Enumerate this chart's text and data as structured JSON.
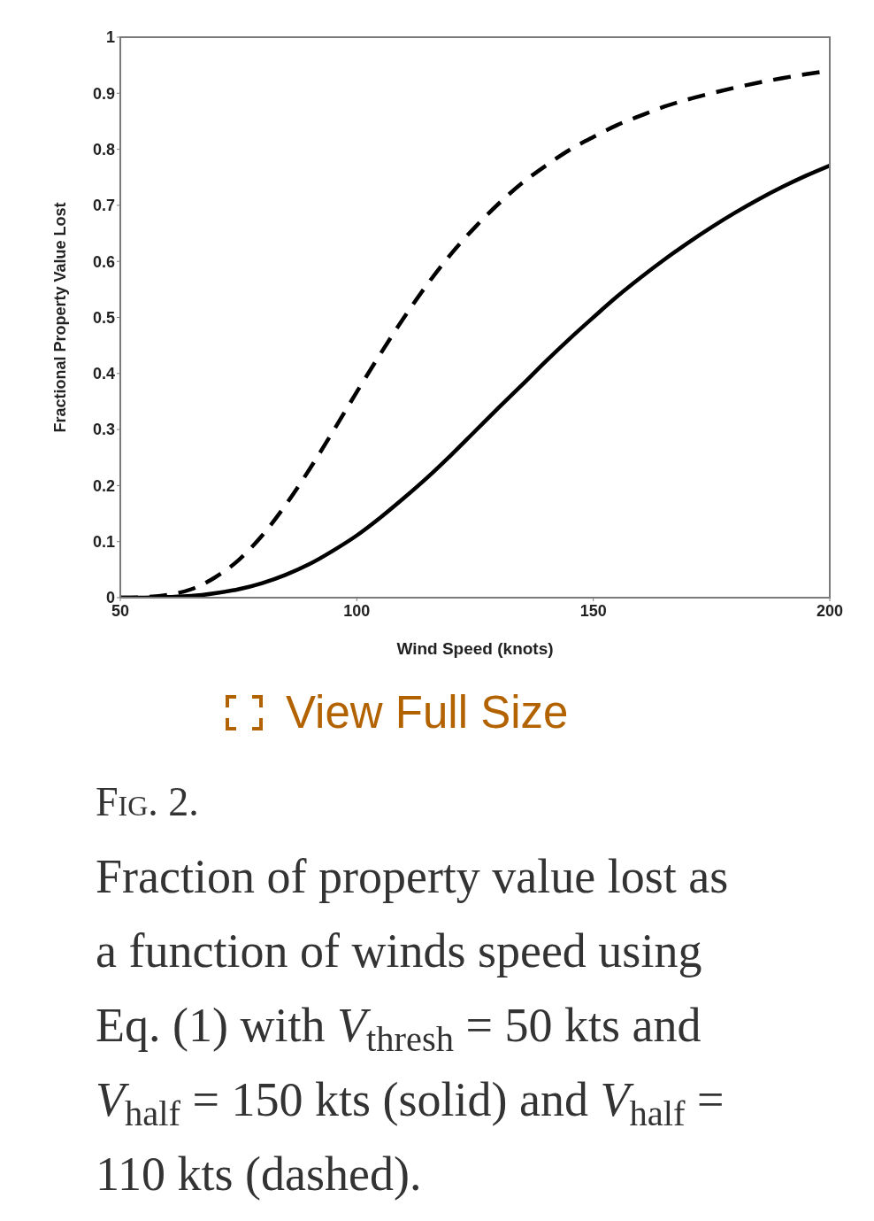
{
  "chart_data": {
    "type": "line",
    "title": "Fig. 2.",
    "xlabel": "Wind Speed (knots)",
    "ylabel": "Fractional Property Value Lost",
    "annotations": [
      "View Full Size",
      "Fraction of property value lost as a function of winds speed using Eq. (1) with V$_{thresh}$ = 50 kts and V$_{half}$ = 150 kts (solid) and V$_{half}$ = 110 kts (dashed)."
    ],
    "x": [
      50,
      55,
      60,
      65,
      70,
      75,
      80,
      85,
      90,
      95,
      100,
      105,
      110,
      115,
      120,
      125,
      130,
      135,
      140,
      145,
      150,
      155,
      160,
      165,
      170,
      175,
      180,
      185,
      190,
      195,
      200
    ],
    "series": [
      {
        "color": "#000000",
        "line_style": "solid",
        "values": [
          0,
          0,
          0.001,
          0.003,
          0.008,
          0.015,
          0.026,
          0.041,
          0.06,
          0.084,
          0.111,
          0.143,
          0.178,
          0.215,
          0.255,
          0.297,
          0.339,
          0.38,
          0.422,
          0.462,
          0.5,
          0.537,
          0.571,
          0.603,
          0.633,
          0.661,
          0.687,
          0.711,
          0.733,
          0.753,
          0.771
        ]
      },
      {
        "color": "#000000",
        "line_style": "dashed",
        "values": [
          0,
          0.001,
          0.005,
          0.015,
          0.036,
          0.067,
          0.111,
          0.166,
          0.229,
          0.297,
          0.367,
          0.435,
          0.5,
          0.56,
          0.614,
          0.661,
          0.703,
          0.74,
          0.771,
          0.799,
          0.822,
          0.843,
          0.86,
          0.876,
          0.889,
          0.9,
          0.91,
          0.919,
          0.927,
          0.934,
          0.94
        ]
      }
    ],
    "xlim": [
      50,
      200
    ],
    "xticks": [
      50,
      100,
      150,
      200
    ],
    "ylim": [
      0,
      1
    ],
    "yticks": [
      0,
      0.1,
      0.2,
      0.3,
      0.4,
      0.5,
      0.6,
      0.7,
      0.8,
      0.9,
      1
    ]
  }
}
